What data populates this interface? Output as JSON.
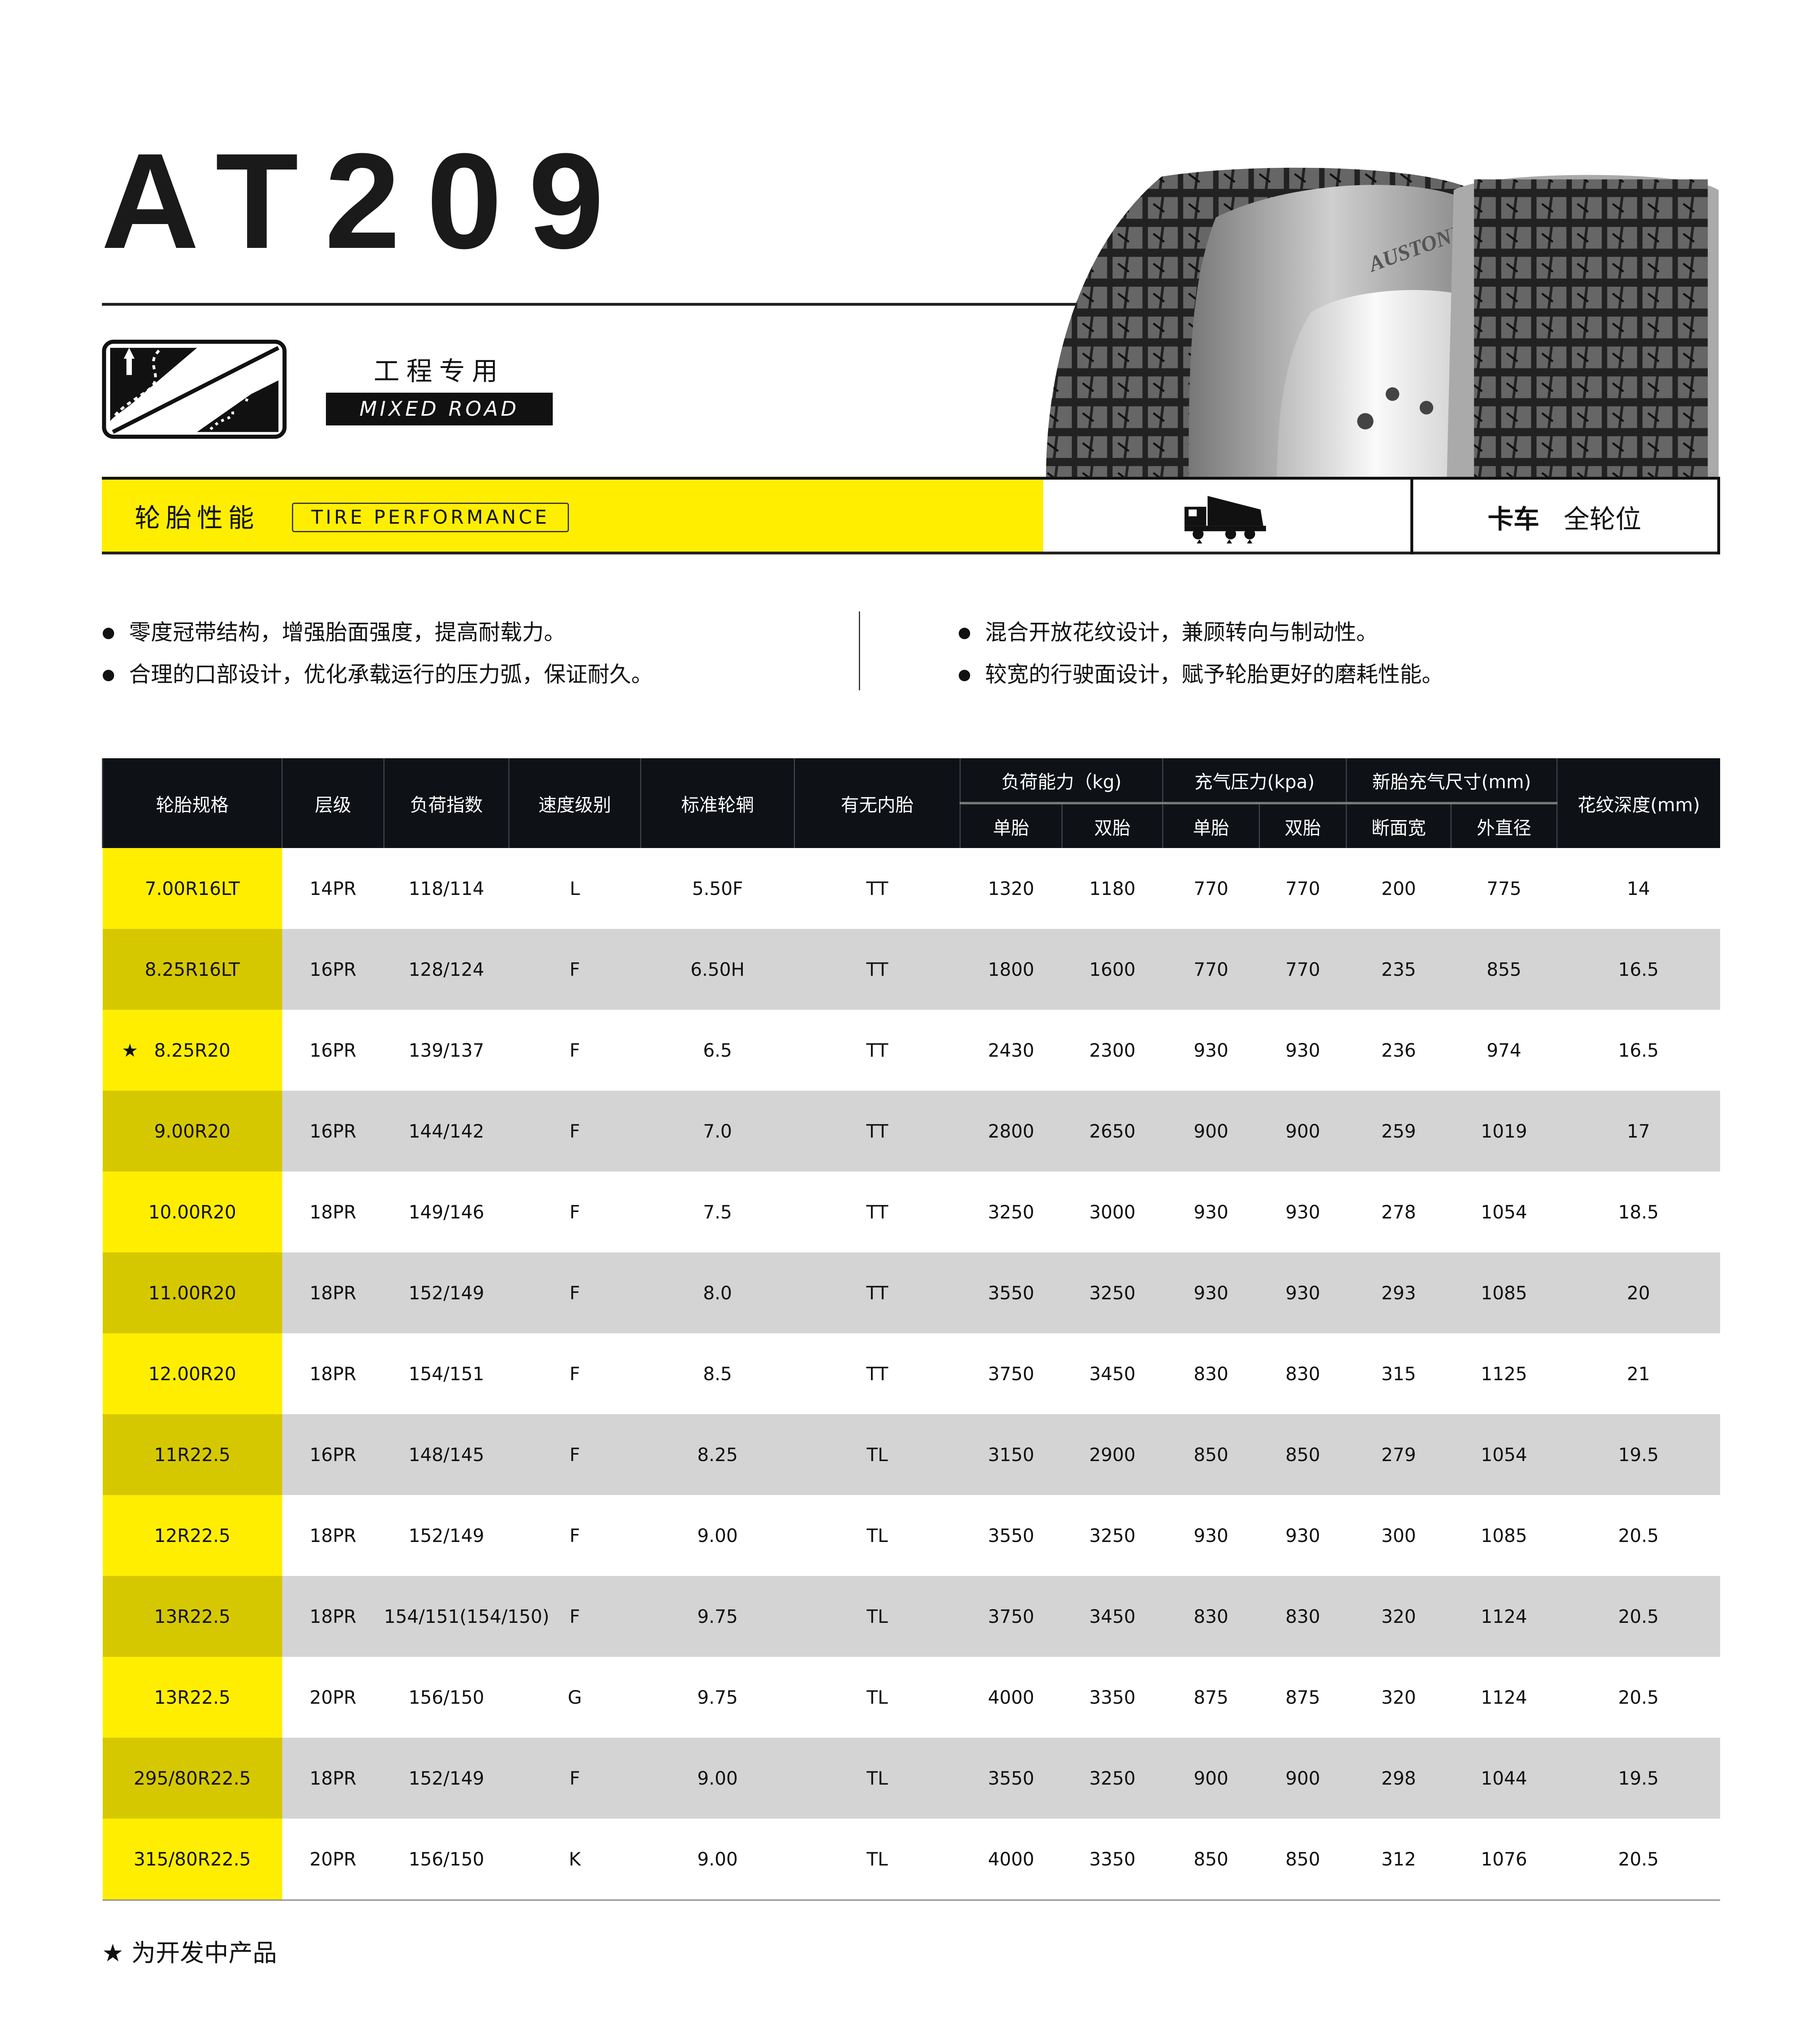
{
  "title": "AT209",
  "category": {
    "cn": "工程专用",
    "en": "MIXED ROAD",
    "icon": "mixed-road-icon"
  },
  "tire_brand_mark": "AUSTONE",
  "performance": {
    "cn": "轮胎性能",
    "en": "TIRE PERFORMANCE",
    "accent_color": "#ffee00"
  },
  "position": {
    "vehicle": "卡车",
    "wheel": "全轮位",
    "icon": "dump-truck-icon"
  },
  "features_left": [
    "零度冠带结构，增强胎面强度，提高耐载力。",
    "合理的口部设计，优化承载运行的压力弧，保证耐久。"
  ],
  "features_right": [
    "混合开放花纹设计，兼顾转向与制动性。",
    "较宽的行驶面设计，赋予轮胎更好的磨耗性能。"
  ],
  "table": {
    "headers": {
      "spec": "轮胎规格",
      "ply": "层级",
      "load_index": "负荷指数",
      "speed": "速度级别",
      "rim": "标准轮辋",
      "tube": "有无内胎",
      "load": "负荷能力（kg)",
      "pressure": "充气压力(kpa)",
      "dims": "新胎充气尺寸(mm)",
      "depth": "花纹深度(mm)",
      "single": "单胎",
      "dual": "双胎",
      "section_width": "断面宽",
      "outer_dia": "外直径"
    },
    "rows": [
      {
        "spec": "7.00R16LT",
        "ply": "14PR",
        "li": "118/114",
        "sp": "L",
        "rim": "5.50F",
        "tube": "TT",
        "ls": "1320",
        "ld": "1180",
        "ps": "770",
        "pd": "770",
        "sw": "200",
        "od": "775",
        "depth": "14"
      },
      {
        "spec": "8.25R16LT",
        "ply": "16PR",
        "li": "128/124",
        "sp": "F",
        "rim": "6.50H",
        "tube": "TT",
        "ls": "1800",
        "ld": "1600",
        "ps": "770",
        "pd": "770",
        "sw": "235",
        "od": "855",
        "depth": "16.5"
      },
      {
        "spec": "8.25R20",
        "star": "★",
        "ply": "16PR",
        "li": "139/137",
        "sp": "F",
        "rim": "6.5",
        "tube": "TT",
        "ls": "2430",
        "ld": "2300",
        "ps": "930",
        "pd": "930",
        "sw": "236",
        "od": "974",
        "depth": "16.5"
      },
      {
        "spec": "9.00R20",
        "ply": "16PR",
        "li": "144/142",
        "sp": "F",
        "rim": "7.0",
        "tube": "TT",
        "ls": "2800",
        "ld": "2650",
        "ps": "900",
        "pd": "900",
        "sw": "259",
        "od": "1019",
        "depth": "17"
      },
      {
        "spec": "10.00R20",
        "ply": "18PR",
        "li": "149/146",
        "sp": "F",
        "rim": "7.5",
        "tube": "TT",
        "ls": "3250",
        "ld": "3000",
        "ps": "930",
        "pd": "930",
        "sw": "278",
        "od": "1054",
        "depth": "18.5"
      },
      {
        "spec": "11.00R20",
        "ply": "18PR",
        "li": "152/149",
        "sp": "F",
        "rim": "8.0",
        "tube": "TT",
        "ls": "3550",
        "ld": "3250",
        "ps": "930",
        "pd": "930",
        "sw": "293",
        "od": "1085",
        "depth": "20"
      },
      {
        "spec": "12.00R20",
        "ply": "18PR",
        "li": "154/151",
        "sp": "F",
        "rim": "8.5",
        "tube": "TT",
        "ls": "3750",
        "ld": "3450",
        "ps": "830",
        "pd": "830",
        "sw": "315",
        "od": "1125",
        "depth": "21"
      },
      {
        "spec": "11R22.5",
        "ply": "16PR",
        "li": "148/145",
        "sp": "F",
        "rim": "8.25",
        "tube": "TL",
        "ls": "3150",
        "ld": "2900",
        "ps": "850",
        "pd": "850",
        "sw": "279",
        "od": "1054",
        "depth": "19.5"
      },
      {
        "spec": "12R22.5",
        "ply": "18PR",
        "li": "152/149",
        "sp": "F",
        "rim": "9.00",
        "tube": "TL",
        "ls": "3550",
        "ld": "3250",
        "ps": "930",
        "pd": "930",
        "sw": "300",
        "od": "1085",
        "depth": "20.5"
      },
      {
        "spec": "13R22.5",
        "ply": "18PR",
        "li": "154/151(154/150)",
        "sp": "F",
        "rim": "9.75",
        "tube": "TL",
        "ls": "3750",
        "ld": "3450",
        "ps": "830",
        "pd": "830",
        "sw": "320",
        "od": "1124",
        "depth": "20.5"
      },
      {
        "spec": "13R22.5",
        "ply": "20PR",
        "li": "156/150",
        "sp": "G",
        "rim": "9.75",
        "tube": "TL",
        "ls": "4000",
        "ld": "3350",
        "ps": "875",
        "pd": "875",
        "sw": "320",
        "od": "1124",
        "depth": "20.5"
      },
      {
        "spec": "295/80R22.5",
        "ply": "18PR",
        "li": "152/149",
        "sp": "F",
        "rim": "9.00",
        "tube": "TL",
        "ls": "3550",
        "ld": "3250",
        "ps": "900",
        "pd": "900",
        "sw": "298",
        "od": "1044",
        "depth": "19.5"
      },
      {
        "spec": "315/80R22.5",
        "ply": "20PR",
        "li": "156/150",
        "sp": "K",
        "rim": "9.00",
        "tube": "TL",
        "ls": "4000",
        "ld": "3350",
        "ps": "850",
        "pd": "850",
        "sw": "312",
        "od": "1076",
        "depth": "20.5"
      }
    ]
  },
  "note": "★ 为开发中产品"
}
